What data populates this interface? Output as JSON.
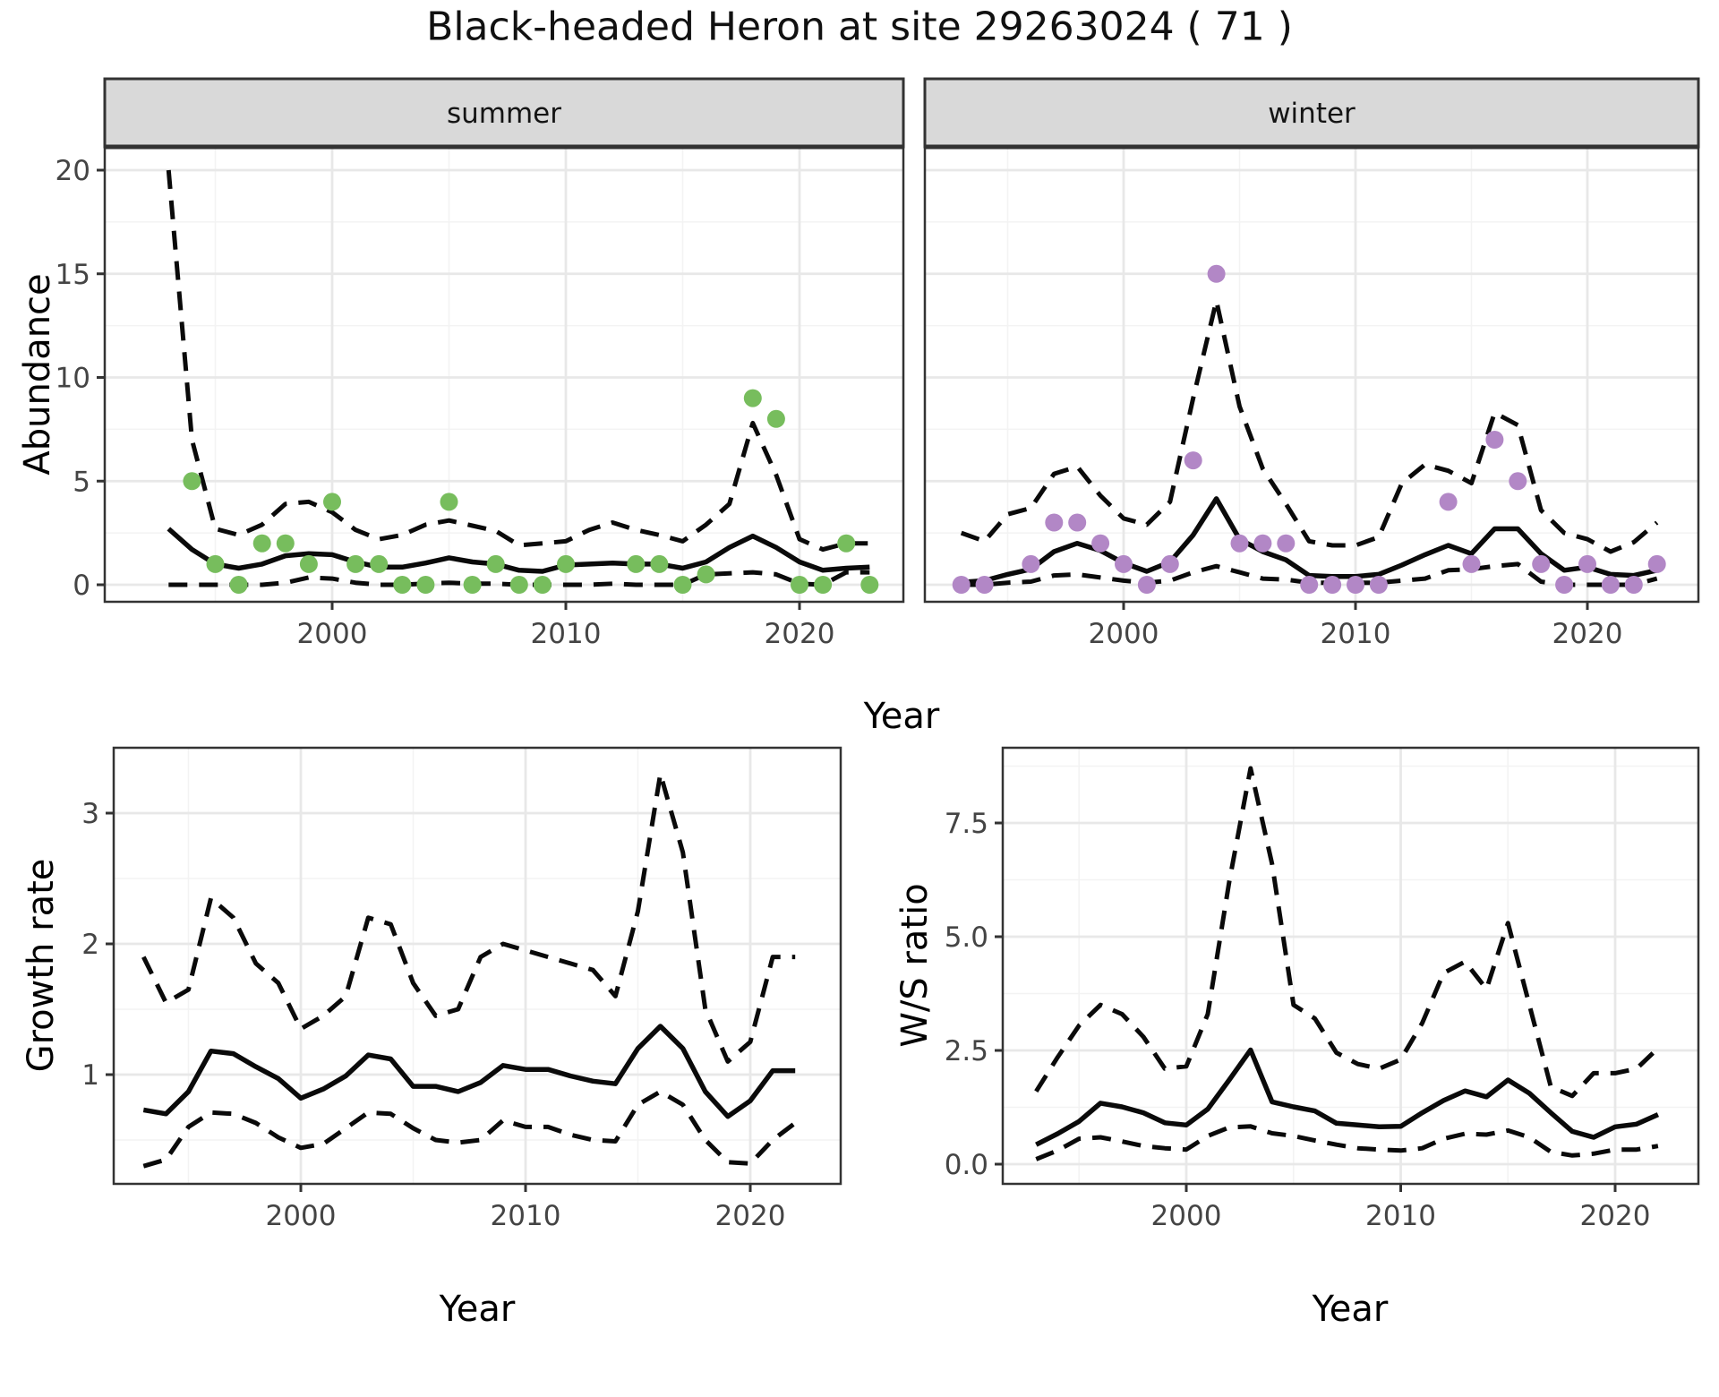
{
  "title": "Black-headed Heron at site 29263024 ( 71 )",
  "facets": {
    "summer": "summer",
    "winter": "winter"
  },
  "axis": {
    "x_label": "Year",
    "y_label_abundance": "Abundance",
    "y_label_growth": "Growth rate",
    "y_label_ws": "W/S ratio"
  },
  "colors": {
    "summer_point": "#77BD5D",
    "winter_point": "#B287C6",
    "line": "#0a0a0a",
    "strip_fill": "#D9D9D9",
    "strip_border": "#333333",
    "panel_border": "#333333",
    "grid_major": "#E8E8E8",
    "grid_minor": "#F3F3F3",
    "tick_mark": "#333333",
    "tick_text": "#444444"
  },
  "chart_data": [
    {
      "id": "abundance-summer",
      "type": "line",
      "facet_label": "summer",
      "xlabel": "Year",
      "ylabel": "Abundance",
      "x_start": 1993,
      "x_ticks": [
        2000,
        2010,
        2020
      ],
      "y_ticks": [
        0,
        5,
        10,
        15,
        20
      ],
      "y_tick_labels": [
        "0",
        "5",
        "10",
        "15",
        "20"
      ],
      "ylim": [
        0,
        20.4
      ],
      "legend": "off",
      "series": [
        {
          "name": "fit",
          "style": "solid",
          "values": [
            2.7,
            1.7,
            1.0,
            0.8,
            1.0,
            1.4,
            1.5,
            1.45,
            1.1,
            0.85,
            0.85,
            1.05,
            1.3,
            1.1,
            1.0,
            0.7,
            0.65,
            0.95,
            1.0,
            1.05,
            1.0,
            1.0,
            0.8,
            1.1,
            1.8,
            2.35,
            1.8,
            1.1,
            0.7,
            0.8,
            0.85
          ]
        },
        {
          "name": "upper_ci",
          "style": "dashed",
          "values": [
            20,
            7,
            2.7,
            2.4,
            2.9,
            3.9,
            4.0,
            3.5,
            2.65,
            2.2,
            2.4,
            2.9,
            3.1,
            2.85,
            2.6,
            1.9,
            2.0,
            2.1,
            2.65,
            3.0,
            2.65,
            2.4,
            2.1,
            2.9,
            3.9,
            7.8,
            5.3,
            2.2,
            1.7,
            2.0,
            2.0
          ]
        },
        {
          "name": "lower_ci",
          "style": "dashed",
          "values": [
            0,
            0,
            0,
            0,
            0,
            0.1,
            0.35,
            0.3,
            0.1,
            0,
            0,
            0.05,
            0.1,
            0.05,
            0.05,
            0,
            0,
            0,
            0,
            0.05,
            0,
            0,
            0,
            0.5,
            0.55,
            0.6,
            0.5,
            0.05,
            0,
            0.6,
            0.6
          ]
        }
      ],
      "observations": [
        [
          1994,
          5
        ],
        [
          1995,
          1
        ],
        [
          1996,
          0
        ],
        [
          1997,
          2
        ],
        [
          1998,
          2
        ],
        [
          1999,
          1
        ],
        [
          2000,
          4
        ],
        [
          2001,
          1
        ],
        [
          2002,
          1
        ],
        [
          2003,
          0
        ],
        [
          2004,
          0
        ],
        [
          2005,
          4
        ],
        [
          2006,
          0
        ],
        [
          2007,
          1
        ],
        [
          2008,
          0
        ],
        [
          2009,
          0
        ],
        [
          2010,
          1
        ],
        [
          2013,
          1
        ],
        [
          2014,
          1
        ],
        [
          2015,
          0
        ],
        [
          2016,
          0.5
        ],
        [
          2018,
          9
        ],
        [
          2019,
          8
        ],
        [
          2020,
          0
        ],
        [
          2021,
          0
        ],
        [
          2022,
          2
        ],
        [
          2023,
          0
        ]
      ],
      "point_color": "#77BD5D"
    },
    {
      "id": "abundance-winter",
      "type": "line",
      "facet_label": "winter",
      "xlabel": "Year",
      "ylabel": "Abundance",
      "x_start": 1993,
      "x_ticks": [
        2000,
        2010,
        2020
      ],
      "y_ticks": [
        0,
        5,
        10,
        15,
        20
      ],
      "y_tick_labels": [],
      "ylim": [
        0,
        20.4
      ],
      "legend": "off",
      "series": [
        {
          "name": "fit",
          "style": "solid",
          "values": [
            0.12,
            0.2,
            0.5,
            0.75,
            1.6,
            2.0,
            1.65,
            1.05,
            0.65,
            1.1,
            2.4,
            4.15,
            2.2,
            1.6,
            1.2,
            0.45,
            0.4,
            0.4,
            0.5,
            0.95,
            1.45,
            1.9,
            1.5,
            2.7,
            2.7,
            1.5,
            0.7,
            0.85,
            0.5,
            0.45,
            0.7
          ]
        },
        {
          "name": "upper_ci",
          "style": "dashed",
          "values": [
            2.5,
            2.1,
            3.4,
            3.7,
            5.35,
            5.7,
            4.3,
            3.2,
            2.9,
            4.0,
            9.0,
            13.7,
            8.6,
            5.6,
            3.9,
            2.1,
            1.9,
            1.9,
            2.3,
            4.9,
            5.8,
            5.5,
            4.9,
            8.3,
            7.7,
            3.6,
            2.5,
            2.2,
            1.6,
            2.05,
            3.0
          ]
        },
        {
          "name": "lower_ci",
          "style": "dashed",
          "values": [
            0,
            0,
            0.1,
            0.15,
            0.45,
            0.5,
            0.35,
            0.2,
            0.1,
            0.2,
            0.6,
            0.9,
            0.6,
            0.3,
            0.25,
            0.1,
            0.1,
            0.1,
            0.1,
            0.2,
            0.3,
            0.7,
            0.75,
            0.9,
            1.0,
            0.15,
            0,
            0,
            0,
            0,
            0.3
          ]
        }
      ],
      "observations": [
        [
          1993,
          0
        ],
        [
          1994,
          0
        ],
        [
          1996,
          1
        ],
        [
          1997,
          3
        ],
        [
          1998,
          3
        ],
        [
          1999,
          2
        ],
        [
          2000,
          1
        ],
        [
          2001,
          0
        ],
        [
          2002,
          1
        ],
        [
          2003,
          6
        ],
        [
          2004,
          15
        ],
        [
          2005,
          2
        ],
        [
          2006,
          2
        ],
        [
          2007,
          2
        ],
        [
          2008,
          0
        ],
        [
          2009,
          0
        ],
        [
          2010,
          0
        ],
        [
          2011,
          0
        ],
        [
          2014,
          4
        ],
        [
          2015,
          1
        ],
        [
          2016,
          7
        ],
        [
          2017,
          5
        ],
        [
          2018,
          1
        ],
        [
          2019,
          0
        ],
        [
          2020,
          1
        ],
        [
          2021,
          0
        ],
        [
          2022,
          0
        ],
        [
          2023,
          1
        ]
      ],
      "point_color": "#B287C6"
    },
    {
      "id": "growth-rate",
      "type": "line",
      "facet_label": "",
      "xlabel": "Year",
      "ylabel": "Growth rate",
      "x_start": 1993,
      "x_ticks": [
        2000,
        2010,
        2020
      ],
      "y_ticks": [
        1,
        2,
        3
      ],
      "y_tick_labels": [
        "1",
        "2",
        "3"
      ],
      "ylim": [
        0.15,
        3.5
      ],
      "legend": "off",
      "series": [
        {
          "name": "fit",
          "style": "solid",
          "values": [
            0.73,
            0.7,
            0.87,
            1.18,
            1.16,
            1.06,
            0.97,
            0.82,
            0.89,
            0.99,
            1.15,
            1.12,
            0.91,
            0.91,
            0.87,
            0.94,
            1.07,
            1.04,
            1.04,
            0.99,
            0.95,
            0.93,
            1.2,
            1.37,
            1.2,
            0.87,
            0.68,
            0.8,
            1.03,
            1.03
          ]
        },
        {
          "name": "upper_ci",
          "style": "dashed",
          "values": [
            1.9,
            1.55,
            1.65,
            2.35,
            2.2,
            1.85,
            1.7,
            1.35,
            1.45,
            1.6,
            2.2,
            2.15,
            1.7,
            1.45,
            1.5,
            1.9,
            2.0,
            1.95,
            1.9,
            1.85,
            1.8,
            1.6,
            2.25,
            3.3,
            2.7,
            1.5,
            1.1,
            1.25,
            1.9,
            1.9
          ]
        },
        {
          "name": "lower_ci",
          "style": "dashed",
          "values": [
            0.3,
            0.35,
            0.6,
            0.71,
            0.7,
            0.63,
            0.52,
            0.44,
            0.47,
            0.59,
            0.71,
            0.7,
            0.59,
            0.5,
            0.48,
            0.5,
            0.65,
            0.6,
            0.6,
            0.54,
            0.5,
            0.49,
            0.77,
            0.87,
            0.77,
            0.5,
            0.33,
            0.32,
            0.5,
            0.63
          ]
        }
      ],
      "observations": [],
      "point_color": "none"
    },
    {
      "id": "ws-ratio",
      "type": "line",
      "facet_label": "",
      "xlabel": "Year",
      "ylabel": "W/S ratio",
      "x_start": 1993,
      "x_ticks": [
        2000,
        2010,
        2020
      ],
      "y_ticks": [
        0,
        2.5,
        5,
        7.5
      ],
      "y_tick_labels": [
        "0.0",
        "2.5",
        "5.0",
        "7.5"
      ],
      "ylim": [
        0,
        9.15
      ],
      "legend": "off",
      "series": [
        {
          "name": "fit",
          "style": "solid",
          "values": [
            0.43,
            0.67,
            0.94,
            1.34,
            1.26,
            1.13,
            0.91,
            0.86,
            1.21,
            1.85,
            2.51,
            1.37,
            1.26,
            1.17,
            0.9,
            0.86,
            0.82,
            0.83,
            1.13,
            1.4,
            1.61,
            1.48,
            1.85,
            1.56,
            1.13,
            0.72,
            0.59,
            0.82,
            0.88,
            1.09
          ]
        },
        {
          "name": "upper_ci",
          "style": "dashed",
          "values": [
            1.6,
            2.35,
            3.05,
            3.5,
            3.3,
            2.8,
            2.1,
            2.15,
            3.3,
            6.2,
            8.7,
            6.6,
            3.5,
            3.2,
            2.45,
            2.2,
            2.1,
            2.3,
            3.1,
            4.2,
            4.45,
            3.85,
            5.3,
            3.5,
            1.7,
            1.5,
            2.0,
            2.0,
            2.1,
            2.55
          ]
        },
        {
          "name": "lower_ci",
          "style": "dashed",
          "values": [
            0.11,
            0.3,
            0.56,
            0.59,
            0.5,
            0.4,
            0.35,
            0.32,
            0.62,
            0.81,
            0.83,
            0.68,
            0.62,
            0.52,
            0.43,
            0.35,
            0.32,
            0.3,
            0.35,
            0.56,
            0.67,
            0.65,
            0.74,
            0.59,
            0.27,
            0.19,
            0.23,
            0.32,
            0.32,
            0.4
          ]
        }
      ],
      "observations": [],
      "point_color": "none"
    }
  ]
}
